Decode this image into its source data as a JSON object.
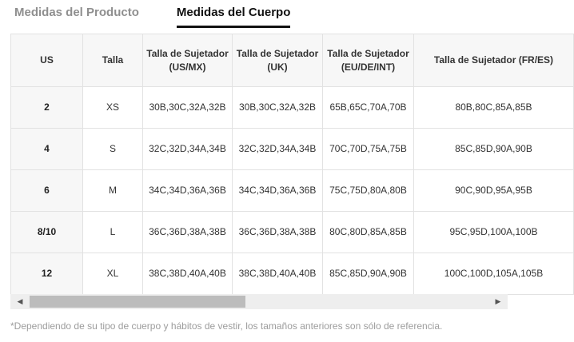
{
  "tabs": [
    {
      "label": "Medidas del Producto",
      "active": false
    },
    {
      "label": "Medidas del Cuerpo",
      "active": true
    }
  ],
  "table": {
    "columns": [
      "US",
      "Talla",
      "Talla de Sujetador (US/MX)",
      "Talla de Sujetador (UK)",
      "Talla de Sujetador (EU/DE/INT)",
      "Talla de Sujetador (FR/ES)"
    ],
    "rows": [
      [
        "2",
        "XS",
        "30B,30C,32A,32B",
        "30B,30C,32A,32B",
        "65B,65C,70A,70B",
        "80B,80C,85A,85B"
      ],
      [
        "4",
        "S",
        "32C,32D,34A,34B",
        "32C,32D,34A,34B",
        "70C,70D,75A,75B",
        "85C,85D,90A,90B"
      ],
      [
        "6",
        "M",
        "34C,34D,36A,36B",
        "34C,34D,36A,36B",
        "75C,75D,80A,80B",
        "90C,90D,95A,95B"
      ],
      [
        "8/10",
        "L",
        "36C,36D,38A,38B",
        "36C,36D,38A,38B",
        "80C,80D,85A,85B",
        "95C,95D,100A,100B"
      ],
      [
        "12",
        "XL",
        "38C,38D,40A,40B",
        "38C,38D,40A,40B",
        "85C,85D,90A,90B",
        "100C,100D,105A,105B"
      ]
    ]
  },
  "scrollbar": {
    "left_arrow": "◀",
    "right_arrow": "▶"
  },
  "footnote": "*Dependiendo de su tipo de cuerpo y hábitos de vestir, los tamaños anteriores son sólo de referencia.",
  "colors": {
    "tab_active": "#111111",
    "tab_inactive": "#8f8f8f",
    "table_border": "#e2e2e2",
    "header_bg": "#f7f7f7",
    "cell_text": "#333333",
    "footnote_text": "#9c9c9c",
    "scrollbar_track": "#eeeeee",
    "scrollbar_thumb": "#bcbcbc"
  }
}
